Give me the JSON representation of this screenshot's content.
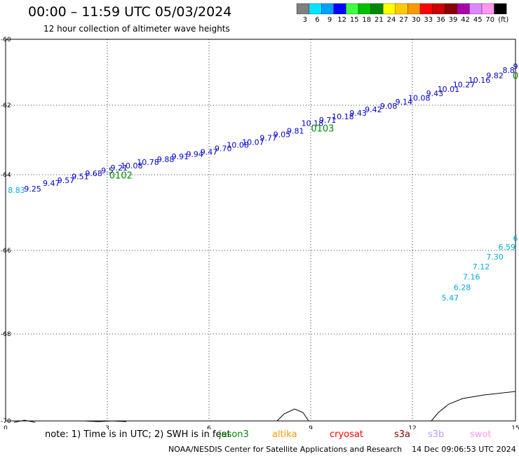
{
  "header": {
    "title": "00:00 – 11:59 UTC 05/03/2024",
    "subtitle": "12 hour collection of altimeter wave heights"
  },
  "legend": {
    "unit": "(ft)",
    "bins": [
      {
        "label": "3",
        "color": "#7f7f7f"
      },
      {
        "label": "6",
        "color": "#00e5ff"
      },
      {
        "label": "9",
        "color": "#00a0ff"
      },
      {
        "label": "12",
        "color": "#0000ff"
      },
      {
        "label": "15",
        "color": "#40ff40"
      },
      {
        "label": "18",
        "color": "#00c000"
      },
      {
        "label": "21",
        "color": "#008800"
      },
      {
        "label": "24",
        "color": "#ffff00"
      },
      {
        "label": "27",
        "color": "#ffcc00"
      },
      {
        "label": "30",
        "color": "#ff9900"
      },
      {
        "label": "33",
        "color": "#ff0000"
      },
      {
        "label": "36",
        "color": "#cc0000"
      },
      {
        "label": "39",
        "color": "#880000"
      },
      {
        "label": "42",
        "color": "#aa00aa"
      },
      {
        "label": "45",
        "color": "#dd88ff"
      },
      {
        "label": "70",
        "color": "#ff99ee"
      },
      {
        "label": "",
        "color": "#000000"
      }
    ]
  },
  "note": {
    "text": "note: 1) Time is in UTC; 2) SWH is in feet",
    "satellites": [
      {
        "name": "jason3",
        "color": "#008800"
      },
      {
        "name": "altika",
        "color": "#ff9900"
      },
      {
        "name": "cryosat",
        "color": "#ff0000"
      },
      {
        "name": "s3a",
        "color": "#880000"
      },
      {
        "name": "s3b",
        "color": "#bb99ff"
      },
      {
        "name": "swot",
        "color": "#ff99ee"
      }
    ]
  },
  "footer": "NOAA/NESDIS Center for Satellite Applications and Research    14 Dec 09:06:53 UTC 2024",
  "chart_data": {
    "type": "scatter",
    "xlim": [
      0,
      15
    ],
    "ylim": [
      -70,
      -60
    ],
    "x_ticks": [
      "0",
      "3",
      "6",
      "9",
      "12",
      "15"
    ],
    "y_ticks": [
      "-60",
      "-62",
      "-64",
      "-66",
      "-68",
      "-70"
    ],
    "grid": true,
    "series": [
      {
        "color": "#0000cc",
        "points": [
          {
            "x": 0.8,
            "y": -64.44,
            "label": "9.25"
          },
          {
            "x": 1.35,
            "y": -64.3,
            "label": "9.47"
          },
          {
            "x": 1.78,
            "y": -64.22,
            "label": "9.57"
          },
          {
            "x": 2.2,
            "y": -64.12,
            "label": "9.51"
          },
          {
            "x": 2.6,
            "y": -64.04,
            "label": "9.68"
          },
          {
            "x": 3.0,
            "y": -63.96,
            "label": "9.5"
          },
          {
            "x": 3.35,
            "y": -63.88,
            "label": "9.21"
          },
          {
            "x": 3.72,
            "y": -63.82,
            "label": "10.08"
          },
          {
            "x": 4.2,
            "y": -63.72,
            "label": "10.78"
          },
          {
            "x": 4.72,
            "y": -63.64,
            "label": "9.88"
          },
          {
            "x": 5.15,
            "y": -63.56,
            "label": "9.91"
          },
          {
            "x": 5.58,
            "y": -63.48,
            "label": "9.94"
          },
          {
            "x": 6.0,
            "y": -63.42,
            "label": "9.47"
          },
          {
            "x": 6.42,
            "y": -63.32,
            "label": "9.70"
          },
          {
            "x": 6.85,
            "y": -63.22,
            "label": "10.08"
          },
          {
            "x": 7.3,
            "y": -63.14,
            "label": "10.07"
          },
          {
            "x": 7.75,
            "y": -63.02,
            "label": "9.77"
          },
          {
            "x": 8.15,
            "y": -62.92,
            "label": "9.05"
          },
          {
            "x": 8.55,
            "y": -62.82,
            "label": "9.81"
          },
          {
            "x": 9.05,
            "y": -62.6,
            "label": "10.18"
          },
          {
            "x": 9.5,
            "y": -62.5,
            "label": "9.71"
          },
          {
            "x": 9.95,
            "y": -62.4,
            "label": "10.18"
          },
          {
            "x": 10.4,
            "y": -62.3,
            "label": "9.43"
          },
          {
            "x": 10.85,
            "y": -62.2,
            "label": "9.42"
          },
          {
            "x": 11.3,
            "y": -62.1,
            "label": "9.08"
          },
          {
            "x": 11.75,
            "y": -61.98,
            "label": "9.14"
          },
          {
            "x": 12.2,
            "y": -61.86,
            "label": "10.08"
          },
          {
            "x": 12.65,
            "y": -61.72,
            "label": "9.43"
          },
          {
            "x": 13.05,
            "y": -61.6,
            "label": "10.01"
          },
          {
            "x": 13.5,
            "y": -61.46,
            "label": "10.27"
          },
          {
            "x": 13.95,
            "y": -61.32,
            "label": "10.16"
          },
          {
            "x": 14.4,
            "y": -61.18,
            "label": "9.82"
          },
          {
            "x": 14.8,
            "y": -61.02,
            "label": "8.8"
          },
          {
            "x": 15.0,
            "y": -60.9,
            "label": "9"
          }
        ]
      },
      {
        "color": "#00aadd",
        "points": [
          {
            "x": 0.32,
            "y": -64.48,
            "label": "8.83"
          },
          {
            "x": 13.1,
            "y": -67.2,
            "label": "5.47"
          },
          {
            "x": 13.45,
            "y": -66.95,
            "label": "6.28"
          },
          {
            "x": 13.72,
            "y": -66.7,
            "label": "7.16"
          },
          {
            "x": 14.0,
            "y": -66.45,
            "label": "7.12"
          },
          {
            "x": 14.4,
            "y": -66.22,
            "label": "7.30"
          },
          {
            "x": 14.75,
            "y": -65.98,
            "label": "6.59"
          },
          {
            "x": 15.0,
            "y": -65.75,
            "label": "6"
          }
        ]
      }
    ],
    "time_labels": [
      {
        "x": 3.4,
        "y": -64.1,
        "label": "0102",
        "color": "#008800"
      },
      {
        "x": 9.35,
        "y": -62.76,
        "label": "0103",
        "color": "#008800"
      },
      {
        "x": 15.0,
        "y": -61.2,
        "label": "0",
        "color": "#008800"
      }
    ]
  }
}
